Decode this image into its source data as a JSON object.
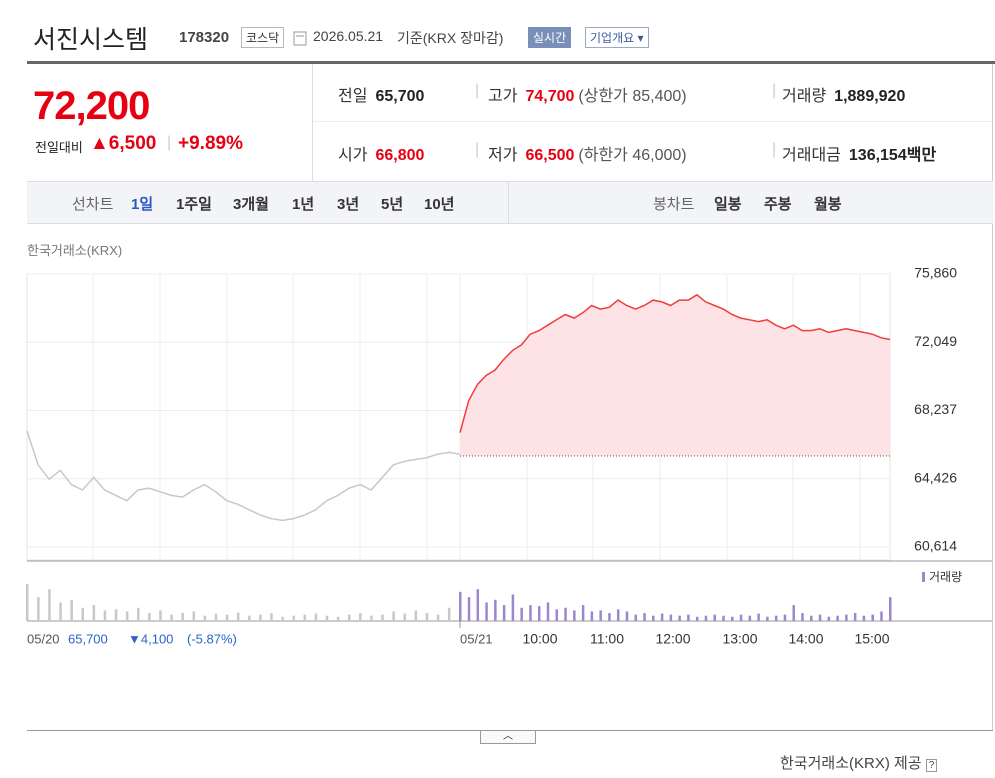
{
  "header": {
    "name": "서진시스템",
    "code": "178320",
    "market": "코스닥",
    "date": "2026.05.21",
    "basis": "기준(KRX 장마감)",
    "realtime": "실시간",
    "company_info": "기업개요"
  },
  "quote": {
    "price": "72,200",
    "change_label": "전일대비",
    "change": "▲6,500",
    "change_pct": "+9.89%",
    "stats": [
      {
        "label": "전일",
        "value": "65,700"
      },
      {
        "label": "고가",
        "value": "74,700",
        "note": "(상한가 85,400)"
      },
      {
        "label": "거래량",
        "value": "1,889,920"
      },
      {
        "label": "시가",
        "value": "66,800"
      },
      {
        "label": "저가",
        "value": "66,500",
        "note": "(하한가 46,000)"
      },
      {
        "label": "거래대금",
        "value": "136,154",
        "unit": "백만"
      }
    ]
  },
  "tabs": {
    "line_label": "선차트",
    "line": [
      "1일",
      "1주일",
      "3개월",
      "1년",
      "3년",
      "5년",
      "10년"
    ],
    "candle_label": "봉차트",
    "candle": [
      "일봉",
      "주봉",
      "월봉"
    ]
  },
  "chart_data": {
    "type": "line",
    "source": "한국거래소(KRX)",
    "ylim": [
      59890,
      75860
    ],
    "yticks": [
      {
        "value": 75860,
        "label": "75,860"
      },
      {
        "value": 72049,
        "label": "72,049"
      },
      {
        "value": 68237,
        "label": "68,237"
      },
      {
        "value": 64426,
        "label": "64,426"
      },
      {
        "value": 60614,
        "label": "60,614"
      }
    ],
    "grid": true,
    "baseline": 65700,
    "series": [
      {
        "color": "#c8c8c8",
        "values": [
          67100,
          65200,
          64400,
          64900,
          64100,
          63800,
          64500,
          63800,
          63500,
          63200,
          63800,
          63900,
          63700,
          63500,
          63400,
          63800,
          64100,
          63700,
          63200,
          63000,
          62700,
          62400,
          62200,
          62100,
          62200,
          62400,
          62700,
          63200,
          63500,
          63900,
          64100,
          63800,
          64500,
          65200,
          65400,
          65500,
          65600,
          65800,
          65900,
          65800
        ]
      },
      {
        "color": "#f03c3c",
        "fill": "#fde3e5",
        "values": [
          67000,
          68800,
          69700,
          70200,
          70500,
          71100,
          71600,
          71900,
          72500,
          72700,
          73000,
          73300,
          73600,
          73400,
          73700,
          74100,
          73900,
          74000,
          74400,
          74100,
          73900,
          74100,
          74400,
          74300,
          74100,
          74400,
          74400,
          74700,
          74300,
          74100,
          73900,
          73600,
          73400,
          73300,
          73200,
          73300,
          73000,
          72800,
          73000,
          72700,
          72700,
          72800,
          72600,
          72700,
          72800,
          72700,
          72600,
          72500,
          72300,
          72200
        ]
      }
    ],
    "volume": {
      "label": "거래량",
      "ylim": [
        0,
        100
      ],
      "series": [
        {
          "color": "#c8c8c8",
          "values": [
            70,
            45,
            60,
            35,
            40,
            25,
            30,
            20,
            22,
            18,
            25,
            15,
            20,
            12,
            15,
            18,
            10,
            14,
            12,
            16,
            10,
            12,
            15,
            8,
            10,
            12,
            14,
            10,
            8,
            12,
            15,
            10,
            12,
            18,
            14,
            20,
            15,
            12,
            25,
            40
          ]
        },
        {
          "color": "#9b87cf",
          "values": [
            55,
            45,
            60,
            35,
            40,
            30,
            50,
            25,
            30,
            28,
            35,
            22,
            25,
            20,
            30,
            18,
            20,
            15,
            22,
            18,
            12,
            15,
            10,
            14,
            12,
            10,
            12,
            8,
            10,
            12,
            10,
            8,
            12,
            10,
            14,
            8,
            10,
            12,
            30,
            15,
            10,
            12,
            8,
            10,
            12,
            15,
            10,
            12,
            18,
            45
          ]
        }
      ]
    },
    "x_labels": [
      "05/20",
      "05/21",
      "10:00",
      "11:00",
      "12:00",
      "13:00",
      "14:00",
      "15:00"
    ],
    "prev_summary": {
      "close": "65,700",
      "change": "▼4,100",
      "change_pct": "(-5.87%)"
    }
  },
  "footer": "한국거래소(KRX) 제공"
}
